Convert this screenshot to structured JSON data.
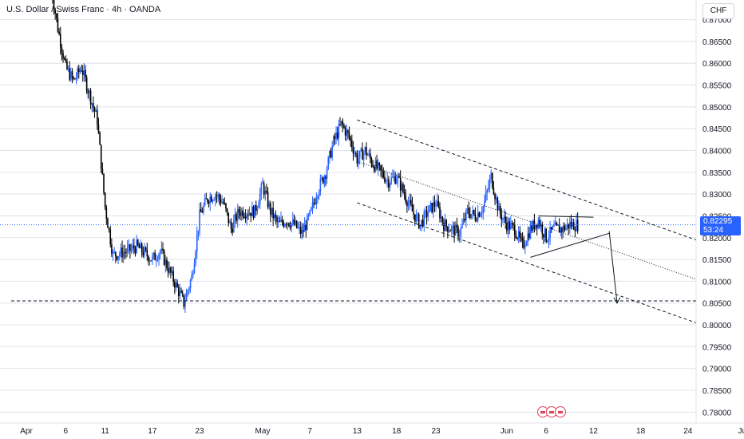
{
  "header": {
    "title": "U.S. Dollar / Swiss Franc · 4h · OANDA",
    "currency_button": "CHF"
  },
  "price_tag": {
    "price": "0.82295",
    "countdown": "53:24"
  },
  "events": {
    "icon": "flag-icon",
    "count": 3
  },
  "colors": {
    "up": "#2962ff",
    "down": "#000000",
    "grid": "#e0e3eb",
    "last_price_line": "#2962ff",
    "tag": "#2962ff"
  },
  "chart_data": {
    "type": "candlestick",
    "symbol": "USDCHF",
    "timeframe": "4h",
    "y_axis": {
      "ticks": [
        "0.87000",
        "0.86500",
        "0.86000",
        "0.85500",
        "0.85000",
        "0.84500",
        "0.84000",
        "0.83500",
        "0.83000",
        "0.82500",
        "0.82000",
        "0.81500",
        "0.81000",
        "0.80500",
        "0.80000",
        "0.79500",
        "0.79000",
        "0.78500",
        "0.78000"
      ],
      "range": [
        0.7775,
        0.8745
      ]
    },
    "x_axis": {
      "ticks": [
        "Apr",
        "6",
        "11",
        "17",
        "23",
        "May",
        "7",
        "13",
        "18",
        "23",
        "Jun",
        "6",
        "12",
        "18",
        "24",
        "Jul"
      ]
    },
    "last_price": 0.82295,
    "price_path": [
      [
        "Apr 4",
        0.879
      ],
      [
        "Apr 5",
        0.868
      ],
      [
        "Apr 6",
        0.859
      ],
      [
        "Apr 7",
        0.856
      ],
      [
        "Apr 8",
        0.859
      ],
      [
        "Apr 9",
        0.853
      ],
      [
        "Apr 10",
        0.847
      ],
      [
        "Apr 11",
        0.827
      ],
      [
        "Apr 12",
        0.816
      ],
      [
        "Apr 14",
        0.817
      ],
      [
        "Apr 15",
        0.818
      ],
      [
        "Apr 17",
        0.815
      ],
      [
        "Apr 18",
        0.817
      ],
      [
        "Apr 19",
        0.813
      ],
      [
        "Apr 21",
        0.805
      ],
      [
        "Apr 22",
        0.811
      ],
      [
        "Apr 23",
        0.825
      ],
      [
        "Apr 24",
        0.829
      ],
      [
        "Apr 25",
        0.83
      ],
      [
        "Apr 26",
        0.828
      ],
      [
        "Apr 27",
        0.822
      ],
      [
        "Apr 28",
        0.826
      ],
      [
        "Apr 30",
        0.826
      ],
      [
        "May 1",
        0.832
      ],
      [
        "May 2",
        0.826
      ],
      [
        "May 3",
        0.823
      ],
      [
        "May 4",
        0.824
      ],
      [
        "May 5",
        0.823
      ],
      [
        "May 6",
        0.821
      ],
      [
        "May 7",
        0.825
      ],
      [
        "May 8",
        0.831
      ],
      [
        "May 9",
        0.835
      ],
      [
        "May 10",
        0.842
      ],
      [
        "May 11",
        0.846
      ],
      [
        "May 12",
        0.843
      ],
      [
        "May 13",
        0.838
      ],
      [
        "May 14",
        0.84
      ],
      [
        "May 15",
        0.837
      ],
      [
        "May 16",
        0.835
      ],
      [
        "May 17",
        0.833
      ],
      [
        "May 18",
        0.834
      ],
      [
        "May 19",
        0.83
      ],
      [
        "May 20",
        0.826
      ],
      [
        "May 21",
        0.823
      ],
      [
        "May 22",
        0.826
      ],
      [
        "May 23",
        0.828
      ],
      [
        "May 24",
        0.823
      ],
      [
        "May 25",
        0.822
      ],
      [
        "May 26",
        0.821
      ],
      [
        "May 27",
        0.826
      ],
      [
        "May 28",
        0.825
      ],
      [
        "May 29",
        0.827
      ],
      [
        "May 30",
        0.834
      ],
      [
        "May 31",
        0.826
      ],
      [
        "Jun 1",
        0.823
      ],
      [
        "Jun 2",
        0.822
      ],
      [
        "Jun 3",
        0.818
      ],
      [
        "Jun 4",
        0.822
      ],
      [
        "Jun 5",
        0.824
      ],
      [
        "Jun 6",
        0.82
      ],
      [
        "Jun 7",
        0.822
      ],
      [
        "Jun 8",
        0.822
      ],
      [
        "Jun 9",
        0.823
      ],
      [
        "Jun 10",
        0.82295
      ]
    ],
    "drawings": {
      "horizontal_level": 0.8055,
      "channel_upper": [
        [
          "May 13",
          0.847
        ],
        [
          "Jun 25",
          0.8195
        ]
      ],
      "channel_middle": [
        [
          "May 13",
          0.8375
        ],
        [
          "Jun 25",
          0.8105
        ]
      ],
      "channel_lower": [
        [
          "May 13",
          0.828
        ],
        [
          "Jun 25",
          0.8005
        ]
      ],
      "triangle_top": [
        [
          "Jun 5",
          0.825
        ],
        [
          "Jun 12",
          0.8247
        ]
      ],
      "triangle_bottom": [
        [
          "Jun 4",
          0.8155
        ],
        [
          "Jun 14",
          0.821
        ]
      ],
      "projection_arrow": [
        [
          "Jun 14",
          0.8215
        ],
        [
          "Jun 15",
          0.805
        ]
      ]
    }
  }
}
